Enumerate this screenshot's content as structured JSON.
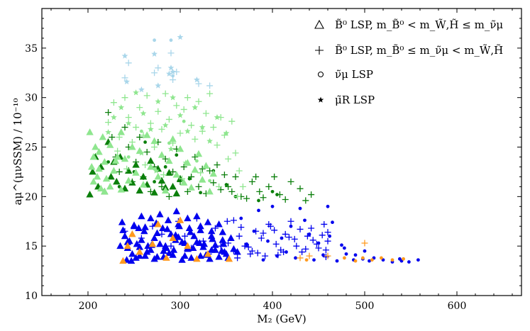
{
  "chart_data": {
    "type": "scatter",
    "xlabel": "M₂ (GeV)",
    "ylabel": "aμ^(μνSSM) / 10⁻¹⁰",
    "xlim": [
      150,
      670
    ],
    "ylim": [
      10,
      39
    ],
    "xticks": [
      200,
      300,
      400,
      500,
      600
    ],
    "yticks": [
      10,
      15,
      20,
      25,
      30,
      35
    ],
    "grid": false,
    "legend_position": "top-right",
    "legend": [
      {
        "marker": "triangle",
        "label": "B̃⁰ LSP, m_B̃⁰ < m_W̃,H̃ ≤ m_ν̃μ"
      },
      {
        "marker": "plus",
        "label": "B̃⁰ LSP, m_B̃⁰ ≤ m_ν̃μ < m_W̃,H̃"
      },
      {
        "marker": "circle",
        "label": "ν̃μ LSP"
      },
      {
        "marker": "star",
        "label": "μ̃R LSP"
      }
    ],
    "colors": {
      "blue": "#0000ee",
      "orange": "#ff9a1f",
      "green": "#0b7f0b",
      "lightgreen": "#8fe68f",
      "lightblue": "#a9d6ea"
    },
    "series": [
      {
        "color": "blue",
        "marker": "triangle",
        "x": [
          237,
          240,
          243,
          247,
          250,
          253,
          256,
          258,
          261,
          264,
          268,
          272,
          275,
          278,
          281,
          284,
          287,
          290,
          293,
          296,
          299,
          302,
          305,
          308,
          311,
          314,
          318,
          322,
          326,
          330,
          334,
          338,
          342,
          346,
          350,
          355,
          362,
          242,
          252,
          262,
          272,
          282,
          292,
          302,
          312,
          322,
          332,
          342,
          352,
          245,
          255,
          265,
          275,
          285,
          295,
          305,
          315,
          325,
          335,
          345,
          235,
          248,
          258,
          268,
          278,
          288,
          298,
          308,
          318,
          328,
          338,
          348,
          358,
          238,
          250,
          262,
          274,
          286,
          298,
          310,
          322,
          334,
          346,
          243,
          256,
          269,
          282,
          295,
          308,
          321,
          334,
          347
        ],
        "y": [
          17.4,
          16.0,
          14.8,
          13.5,
          17.0,
          15.2,
          14.0,
          18.0,
          16.5,
          14.4,
          17.8,
          15.8,
          13.9,
          18.2,
          16.8,
          15.0,
          17.6,
          16.2,
          14.6,
          18.5,
          17.0,
          15.4,
          14.0,
          17.8,
          16.4,
          14.8,
          18.0,
          16.6,
          15.2,
          17.4,
          16.0,
          14.6,
          17.2,
          15.6,
          14.2,
          15.8,
          14.4,
          13.6,
          13.8,
          14.0,
          13.7,
          13.9,
          14.1,
          13.6,
          13.8,
          14.0,
          13.7,
          13.9,
          13.8,
          15.5,
          16.8,
          15.0,
          16.3,
          14.8,
          16.1,
          15.3,
          16.0,
          14.9,
          15.7,
          14.5,
          15.0,
          14.2,
          15.6,
          14.6,
          15.2,
          14.3,
          15.9,
          14.7,
          15.4,
          14.1,
          15.1,
          14.4,
          14.7,
          16.6,
          17.1,
          16.9,
          17.3,
          16.7,
          17.2,
          16.8,
          17.0,
          16.5,
          16.4,
          15.4,
          14.9,
          15.1,
          14.5,
          15.6,
          14.8,
          15.3,
          14.6,
          15.2
        ]
      },
      {
        "color": "blue",
        "marker": "plus",
        "x": [
          240,
          258,
          270,
          280,
          290,
          298,
          305,
          312,
          318,
          325,
          331,
          338,
          344,
          351,
          358,
          364,
          370,
          376,
          382,
          388,
          392,
          398,
          404,
          409,
          414,
          420,
          426,
          432,
          438,
          444,
          450,
          456,
          460,
          352,
          366,
          384,
          402,
          418,
          436,
          454,
          460,
          362,
          378,
          396,
          412,
          430,
          448,
          458,
          358,
          374,
          390,
          406,
          424,
          442,
          458
        ],
        "y": [
          16.5,
          15.8,
          17.0,
          16.2,
          15.0,
          17.5,
          16.0,
          14.8,
          17.8,
          15.5,
          14.2,
          16.8,
          15.0,
          17.5,
          14.5,
          16.0,
          15.0,
          14.2,
          16.5,
          15.8,
          14.0,
          17.0,
          15.2,
          14.6,
          16.2,
          17.5,
          15.0,
          14.4,
          16.0,
          15.6,
          14.8,
          17.2,
          16.4,
          15.3,
          16.9,
          14.3,
          16.6,
          15.9,
          14.7,
          16.1,
          15.5,
          13.8,
          14.5,
          17.2,
          14.4,
          16.7,
          15.2,
          13.9,
          17.6,
          14.9,
          16.3,
          14.1,
          15.7,
          16.8,
          14.6
        ]
      },
      {
        "color": "blue",
        "marker": "circle",
        "x": [
          360,
          380,
          385,
          395,
          400,
          405,
          420,
          425,
          430,
          440,
          445,
          460,
          462,
          470,
          478,
          480,
          488,
          490,
          498,
          500,
          505,
          510,
          520,
          530,
          538,
          540,
          548,
          558,
          366,
          372,
          390,
          410,
          415,
          435,
          450,
          455,
          465,
          475
        ],
        "y": [
          14.5,
          16.5,
          18.6,
          15.5,
          19.0,
          14.0,
          17.0,
          13.8,
          18.8,
          16.2,
          13.6,
          19.0,
          16.0,
          13.5,
          14.8,
          14.2,
          13.6,
          14.1,
          13.7,
          14.5,
          13.5,
          13.8,
          13.6,
          13.4,
          13.7,
          13.5,
          13.4,
          13.6,
          17.8,
          15.2,
          13.6,
          15.8,
          14.4,
          17.6,
          15.3,
          14.1,
          17.4,
          15.1
        ]
      },
      {
        "color": "orange",
        "marker": "triangle",
        "x": [
          238,
          243,
          248,
          256,
          270,
          276,
          285,
          292,
          300,
          308,
          318,
          330,
          353
        ],
        "y": [
          13.5,
          15.0,
          16.2,
          14.4,
          15.2,
          17.2,
          13.8,
          15.8,
          17.6,
          15.0,
          13.7,
          14.2,
          13.7
        ]
      },
      {
        "color": "orange",
        "marker": "plus",
        "x": [
          430,
          440,
          460,
          500
        ],
        "y": [
          13.8,
          14.0,
          14.0,
          15.3
        ]
      },
      {
        "color": "orange",
        "marker": "circle",
        "x": [
          437,
          478,
          490,
          498,
          508,
          518,
          530,
          542
        ],
        "y": [
          13.6,
          13.8,
          13.5,
          13.8,
          13.6,
          13.8,
          13.6,
          13.7
        ]
      },
      {
        "color": "green",
        "marker": "triangle",
        "x": [
          202,
          205,
          208,
          211,
          214,
          218,
          222,
          225,
          228,
          231,
          235,
          240,
          244,
          248,
          252,
          256,
          260,
          264,
          268,
          272,
          276,
          280,
          284,
          288,
          292,
          296,
          300
        ],
        "y": [
          20.2,
          22.5,
          24.0,
          21.0,
          23.0,
          20.5,
          25.5,
          22.0,
          23.5,
          21.5,
          24.0,
          20.8,
          22.6,
          21.4,
          23.2,
          20.6,
          22.0,
          21.2,
          23.6,
          20.4,
          22.8,
          21.6,
          20.9,
          22.4,
          21.0,
          20.3,
          21.8
        ]
      },
      {
        "color": "green",
        "marker": "plus",
        "x": [
          222,
          226,
          230,
          234,
          240,
          244,
          248,
          252,
          256,
          260,
          264,
          268,
          272,
          276,
          280,
          284,
          288,
          292,
          296,
          300,
          304,
          308,
          312,
          316,
          320,
          324,
          328,
          332,
          336,
          340,
          344,
          348,
          352,
          356,
          360,
          366,
          372,
          378,
          382,
          386,
          390,
          396,
          402,
          408,
          414,
          420,
          430,
          436,
          442
        ],
        "y": [
          28.5,
          26.0,
          24.0,
          22.5,
          27.0,
          25.0,
          21.5,
          23.5,
          26.0,
          22.0,
          24.5,
          20.5,
          23.0,
          25.5,
          21.0,
          23.8,
          20.0,
          22.5,
          24.8,
          21.5,
          23.0,
          20.5,
          22.0,
          24.0,
          21.0,
          22.8,
          20.3,
          22.6,
          21.4,
          23.2,
          20.7,
          22.2,
          21.0,
          20.5,
          22.0,
          20.0,
          19.8,
          21.5,
          22.0,
          20.5,
          19.9,
          21.0,
          22.0,
          20.2,
          19.7,
          21.5,
          20.8,
          19.6,
          20.2
        ]
      },
      {
        "color": "green",
        "marker": "circle",
        "x": [
          222,
          234,
          250,
          262,
          272,
          284,
          296,
          310,
          322,
          336,
          350,
          360,
          385,
          400,
          405
        ],
        "y": [
          23.5,
          21.0,
          22.5,
          25.5,
          21.5,
          23.0,
          24.2,
          21.8,
          20.4,
          22.6,
          21.2,
          20.0,
          19.6,
          20.5,
          20.2
        ]
      },
      {
        "color": "lightgreen",
        "marker": "triangle",
        "x": [
          202,
          204,
          206,
          208,
          210,
          212,
          214,
          216,
          218,
          220,
          224,
          228,
          232,
          236,
          240,
          244,
          248,
          252,
          256,
          260,
          264,
          268,
          272,
          276,
          280,
          284,
          288,
          292,
          296,
          300,
          304,
          308,
          312,
          316,
          320,
          324,
          328,
          332,
          336,
          206,
          212,
          218,
          224,
          230,
          236
        ],
        "y": [
          26.5,
          23.0,
          21.5,
          25.0,
          22.0,
          24.5,
          20.8,
          26.0,
          23.5,
          21.8,
          25.2,
          22.6,
          24.0,
          26.5,
          23.8,
          21.6,
          25.0,
          22.4,
          24.6,
          21.2,
          26.2,
          23.0,
          25.6,
          22.0,
          24.2,
          20.6,
          23.6,
          25.8,
          22.2,
          24.8,
          21.4,
          23.4,
          20.9,
          22.7,
          24.3,
          21.7,
          23.1,
          20.5,
          22.3,
          24.0,
          22.8,
          20.5,
          21.0,
          23.6,
          20.7
        ]
      },
      {
        "color": "lightgreen",
        "marker": "plus",
        "x": [
          222,
          228,
          234,
          240,
          244,
          248,
          252,
          256,
          260,
          264,
          268,
          272,
          276,
          280,
          284,
          288,
          292,
          296,
          300,
          304,
          308,
          312,
          316,
          320,
          324,
          328,
          332,
          336,
          340,
          344,
          348,
          352,
          356,
          360,
          364,
          368,
          232,
          242,
          262,
          282,
          302,
          322,
          342,
          362
        ],
        "y": [
          27.5,
          29.5,
          26.0,
          30.0,
          28.0,
          25.5,
          27.0,
          29.0,
          26.2,
          30.2,
          27.4,
          25.0,
          28.6,
          26.8,
          30.4,
          27.8,
          25.4,
          29.2,
          26.4,
          28.8,
          30.0,
          27.2,
          25.8,
          29.6,
          26.6,
          28.4,
          30.4,
          27.0,
          25.2,
          28.0,
          26.2,
          23.8,
          27.6,
          24.4,
          22.6,
          21.0,
          24.6,
          22.8,
          23.2,
          22.2,
          21.8,
          22.4,
          21.0,
          20.0
        ]
      },
      {
        "color": "lightgreen",
        "marker": "circle",
        "x": [
          244,
          258,
          272,
          288,
          304,
          318,
          332
        ],
        "y": [
          24.0,
          26.6,
          22.8,
          25.4,
          27.6,
          23.6,
          21.6
        ]
      },
      {
        "color": "lightgreen",
        "marker": "star",
        "x": [
          222,
          228,
          236,
          244,
          252,
          260,
          268,
          276,
          284,
          292,
          300,
          308,
          316,
          324,
          332,
          340,
          350,
          258,
          274,
          290,
          306
        ],
        "y": [
          26.5,
          28.0,
          29.0,
          27.4,
          30.5,
          28.4,
          26.8,
          29.6,
          27.2,
          30.0,
          28.2,
          26.6,
          29.0,
          27.0,
          25.6,
          28.0,
          26.4,
          24.4,
          22.6,
          24.8,
          23.4
        ]
      },
      {
        "color": "lightblue",
        "marker": "plus",
        "x": [
          240,
          244,
          272,
          276,
          290,
          292,
          296,
          320,
          332
        ],
        "y": [
          32.0,
          33.5,
          32.5,
          33.0,
          34.5,
          31.8,
          32.6,
          31.4,
          31.2
        ]
      },
      {
        "color": "lightblue",
        "marker": "circle",
        "x": [
          272,
          290,
          292
        ],
        "y": [
          35.8,
          35.8,
          32.2
        ]
      },
      {
        "color": "lightblue",
        "marker": "star",
        "x": [
          240,
          242,
          258,
          272,
          276,
          288,
          290,
          292,
          300,
          318
        ],
        "y": [
          34.2,
          31.6,
          30.8,
          34.4,
          31.2,
          32.4,
          33.0,
          32.6,
          36.1,
          31.8
        ]
      }
    ]
  }
}
